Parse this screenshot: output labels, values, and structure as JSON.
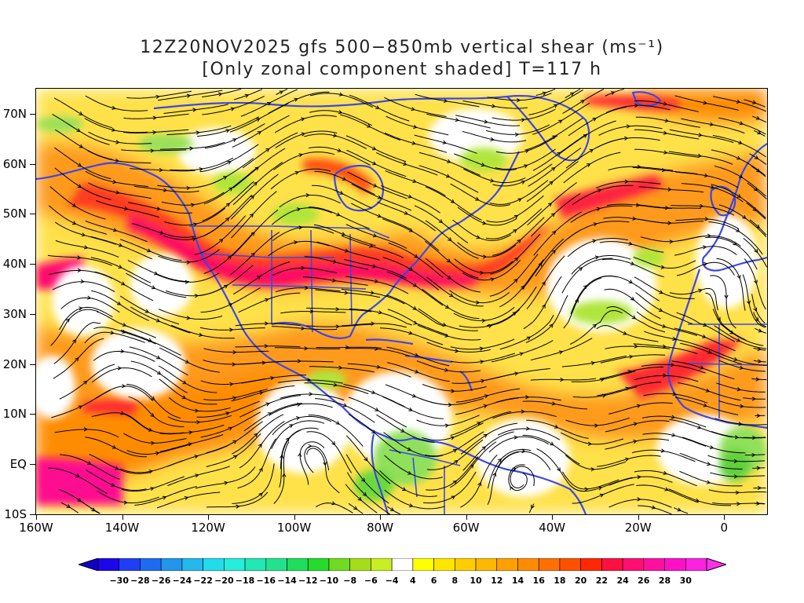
{
  "title": {
    "line1": "12Z20NOV2025 gfs 500−850mb vertical shear (ms⁻¹)",
    "line2": "[Only zonal component shaded] T=117 h"
  },
  "axes": {
    "lat_labels": [
      "70N",
      "60N",
      "50N",
      "40N",
      "30N",
      "20N",
      "10N",
      "EQ",
      "10S"
    ],
    "lon_labels": [
      "160W",
      "140W",
      "120W",
      "100W",
      "80W",
      "60W",
      "40W",
      "20W",
      "0"
    ]
  },
  "colorbar": {
    "labels": [
      "−30",
      "−28",
      "−26",
      "−24",
      "−22",
      "−20",
      "−18",
      "−16",
      "−14",
      "−12",
      "−10",
      "−8",
      "−6",
      "−4",
      "4",
      "6",
      "8",
      "10",
      "12",
      "14",
      "16",
      "18",
      "20",
      "22",
      "24",
      "26",
      "28",
      "30"
    ],
    "colors": [
      "#1d06e8",
      "#1e3ff5",
      "#1f6af2",
      "#2395ec",
      "#25b8ec",
      "#22dcee",
      "#25eedc",
      "#22e9b3",
      "#22e38b",
      "#1ede5c",
      "#26dc2b",
      "#71dc1f",
      "#a6dd1b",
      "#c9ee22",
      "#ffffff",
      "#ffff00",
      "#ffe500",
      "#ffce00",
      "#ffb800",
      "#ffa000",
      "#ff8c00",
      "#ff7000",
      "#ff5000",
      "#ff2800",
      "#ff1040",
      "#ff1070",
      "#ff10a0",
      "#ff10c8",
      "#ff20e0"
    ],
    "under_color": "#1400c8",
    "over_color": "#ff30e8"
  },
  "colors": {
    "coastline": "#3b47e8",
    "streamline": "#000000"
  }
}
